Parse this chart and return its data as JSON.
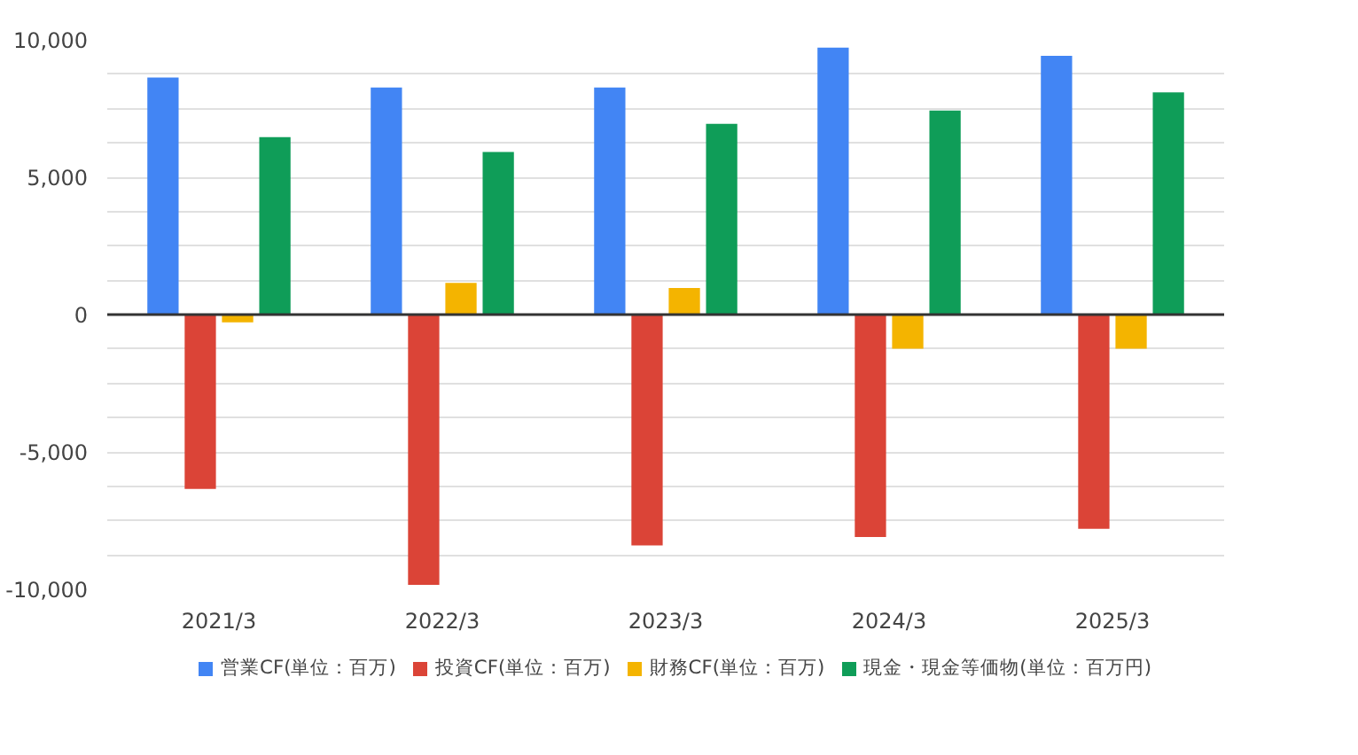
{
  "chart_data": {
    "type": "bar",
    "categories": [
      "2021/3",
      "2022/3",
      "2023/3",
      "2024/3",
      "2025/3"
    ],
    "series": [
      {
        "name": "営業CF(単位：百万)",
        "color": "#4285f4",
        "values": [
          8630,
          8270,
          8270,
          9720,
          9420
        ]
      },
      {
        "name": "投資CF(単位：百万)",
        "color": "#db4437",
        "values": [
          -6350,
          -9840,
          -8400,
          -8100,
          -7800
        ]
      },
      {
        "name": "財務CF(単位：百万)",
        "color": "#f4b400",
        "values": [
          -280,
          1150,
          970,
          -1240,
          -1240
        ]
      },
      {
        "name": "現金・現金等価物(単位：百万円)",
        "color": "#0f9d58",
        "values": [
          6460,
          5920,
          6940,
          7430,
          8090
        ]
      }
    ],
    "ylim": [
      -10000,
      10000
    ],
    "yticks": [
      {
        "value": -10000,
        "label": "-10,000"
      },
      {
        "value": -8750,
        "label": null
      },
      {
        "value": -7500,
        "label": null
      },
      {
        "value": -6250,
        "label": null
      },
      {
        "value": -5000,
        "label": "-5,000"
      },
      {
        "value": -3750,
        "label": null
      },
      {
        "value": -2500,
        "label": null
      },
      {
        "value": -1250,
        "label": null
      },
      0,
      {
        "value": 1250,
        "label": null
      },
      {
        "value": 2500,
        "label": null
      },
      {
        "value": 3750,
        "label": null
      },
      {
        "value": 5000,
        "label": "5,000"
      },
      {
        "value": 6250,
        "label": null
      },
      {
        "value": 7500,
        "label": null
      },
      {
        "value": 8750,
        "label": null
      },
      {
        "value": 10000,
        "label": "10,000"
      }
    ],
    "grid": "y",
    "legend": "bottom"
  }
}
